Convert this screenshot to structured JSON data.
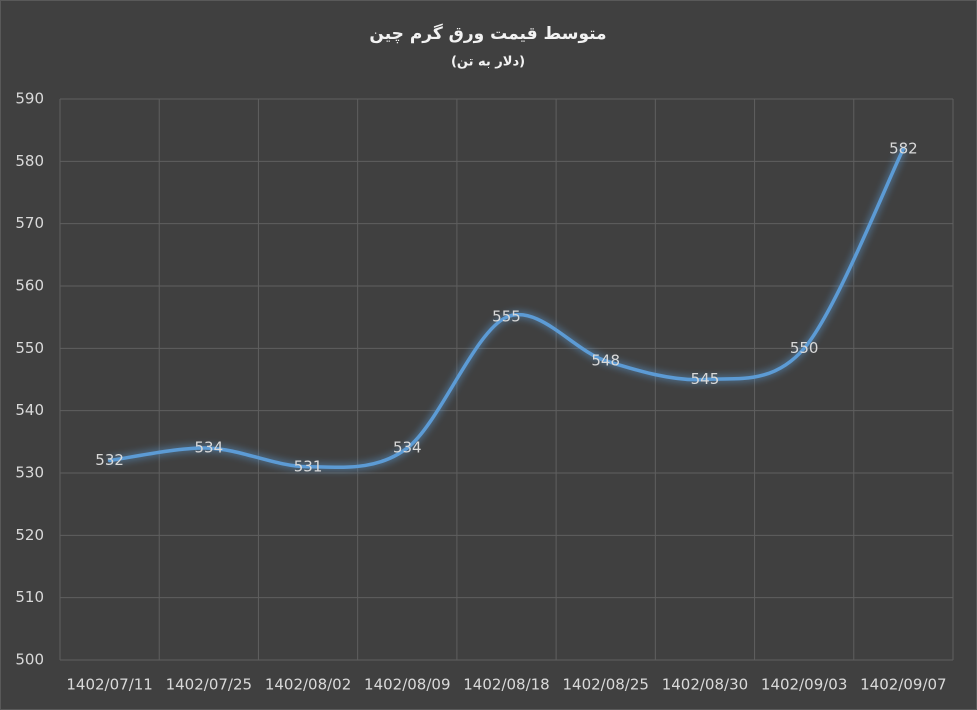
{
  "chart_data": {
    "type": "line",
    "title": "متوسط قیمت ورق گرم چین",
    "subtitle": "(دلار به تن)",
    "categories": [
      "1402/07/11",
      "1402/07/25",
      "1402/08/02",
      "1402/08/09",
      "1402/08/18",
      "1402/08/25",
      "1402/08/30",
      "1402/09/03",
      "1402/09/07"
    ],
    "values": [
      532,
      534,
      531,
      534,
      555,
      548,
      545,
      550,
      582
    ],
    "color": "#5b9bd5",
    "ylim": [
      500,
      590
    ],
    "yticks": [
      500,
      510,
      520,
      530,
      540,
      550,
      560,
      570,
      580,
      590
    ],
    "grid": true,
    "data_labels": true
  }
}
